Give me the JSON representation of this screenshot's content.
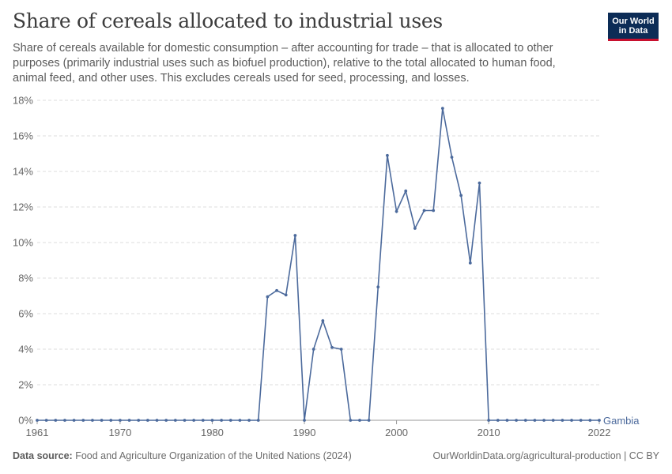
{
  "logo": {
    "line1": "Our World",
    "line2": "in Data"
  },
  "footer": {
    "source_label": "Data source:",
    "source_text": "Food and Agriculture Organization of the United Nations (2024)",
    "link": "OurWorldinData.org/agricultural-production | CC BY"
  },
  "colors": {
    "series": "#4c6a9c",
    "grid": "#dddddd",
    "logo_bg": "#0c2c56",
    "logo_accent": "#c8102e"
  },
  "chart_data": {
    "type": "line",
    "title": "Share of cereals allocated to industrial uses",
    "subtitle": "Share of cereals available for domestic consumption – after accounting for trade – that is allocated to other purposes (primarily industrial uses such as biofuel production), relative to the total allocated to human food, animal feed, and other uses. This excludes cereals used for seed, processing, and losses.",
    "xlabel": "",
    "ylabel": "",
    "xlim": [
      1961,
      2022
    ],
    "ylim": [
      0,
      18
    ],
    "x_ticks": [
      1961,
      1970,
      1980,
      1990,
      2000,
      2010,
      2022
    ],
    "y_ticks": [
      0,
      2,
      4,
      6,
      8,
      10,
      12,
      14,
      16,
      18
    ],
    "y_tick_labels": [
      "0%",
      "2%",
      "4%",
      "6%",
      "8%",
      "10%",
      "12%",
      "14%",
      "16%",
      "18%"
    ],
    "grid": true,
    "series": [
      {
        "name": "Gambia",
        "x": [
          1961,
          1962,
          1963,
          1964,
          1965,
          1966,
          1967,
          1968,
          1969,
          1970,
          1971,
          1972,
          1973,
          1974,
          1975,
          1976,
          1977,
          1978,
          1979,
          1980,
          1981,
          1982,
          1983,
          1984,
          1985,
          1986,
          1987,
          1988,
          1989,
          1990,
          1991,
          1992,
          1993,
          1994,
          1995,
          1996,
          1997,
          1998,
          1999,
          2000,
          2001,
          2002,
          2003,
          2004,
          2005,
          2006,
          2007,
          2008,
          2009,
          2010,
          2011,
          2012,
          2013,
          2014,
          2015,
          2016,
          2017,
          2018,
          2019,
          2020,
          2021,
          2022
        ],
        "values": [
          0,
          0,
          0,
          0,
          0,
          0,
          0,
          0,
          0,
          0,
          0,
          0,
          0,
          0,
          0,
          0,
          0,
          0,
          0,
          0,
          0,
          0,
          0,
          0,
          0,
          6.95,
          7.3,
          7.05,
          10.4,
          0,
          4.0,
          5.6,
          4.1,
          4.0,
          0,
          0,
          0,
          7.5,
          14.9,
          11.75,
          12.9,
          10.8,
          11.8,
          11.8,
          17.55,
          14.8,
          12.65,
          8.85,
          13.35,
          0,
          0,
          0,
          0,
          0,
          0,
          0,
          0,
          0,
          0,
          0,
          0,
          0
        ]
      }
    ]
  }
}
